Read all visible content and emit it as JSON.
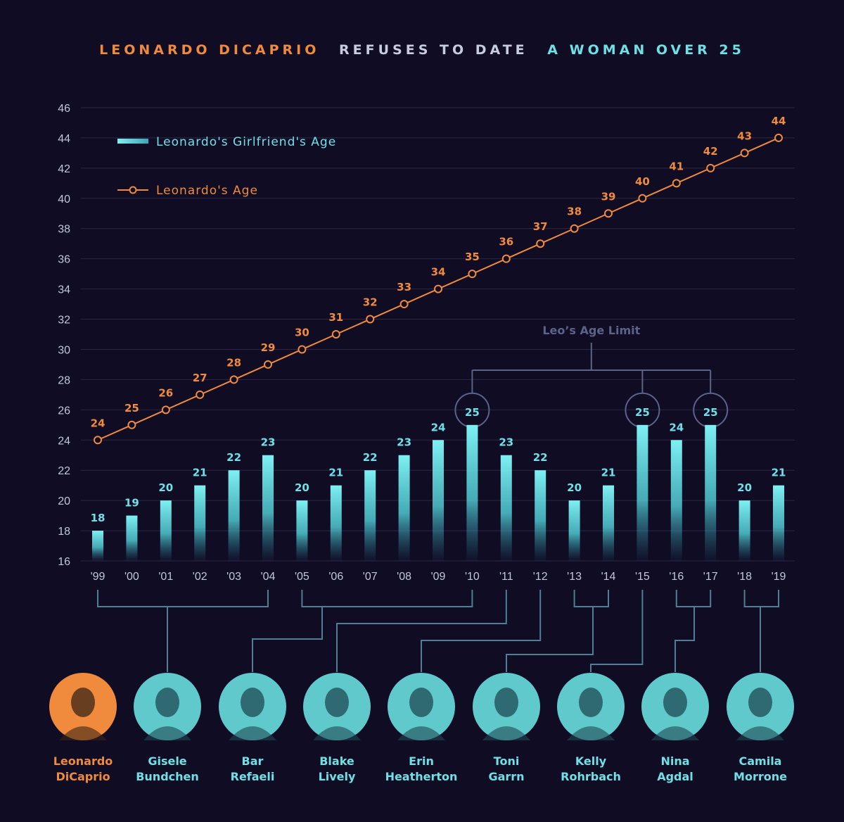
{
  "title": {
    "part1": "LEONARDO DICAPRIO",
    "part2": "REFUSES TO DATE",
    "part3": "A WOMAN OVER 25",
    "color1": "#f08a3c",
    "color2": "#c9cce0",
    "color3": "#6fe0e6"
  },
  "annotation": {
    "label": "Leo’s Age Limit",
    "highlighted_years": [
      "'10",
      "'15",
      "'17"
    ]
  },
  "people": [
    {
      "first": "Leonardo",
      "last": "DiCaprio",
      "color": "#f08a3c"
    },
    {
      "first": "Gisele",
      "last": "Bundchen",
      "color": "#6fe0e6"
    },
    {
      "first": "Bar",
      "last": "Refaeli",
      "color": "#6fe0e6"
    },
    {
      "first": "Blake",
      "last": "Lively",
      "color": "#6fe0e6"
    },
    {
      "first": "Erin",
      "last": "Heatherton",
      "color": "#6fe0e6"
    },
    {
      "first": "Toni",
      "last": "Garrn",
      "color": "#6fe0e6"
    },
    {
      "first": "Kelly",
      "last": "Rohrbach",
      "color": "#6fe0e6"
    },
    {
      "first": "Nina",
      "last": "Agdal",
      "color": "#6fe0e6"
    },
    {
      "first": "Camila",
      "last": "Morrone",
      "color": "#6fe0e6"
    }
  ],
  "chart_data": {
    "type": "bar",
    "categories": [
      "'99",
      "'00",
      "'01",
      "'02",
      "'03",
      "'04",
      "'05",
      "'06",
      "'07",
      "'08",
      "'09",
      "'10",
      "'11",
      "'12",
      "'13",
      "'14",
      "'15",
      "'16",
      "'17",
      "'18",
      "'19"
    ],
    "series": [
      {
        "name": "Leonardo's Girlfriend's Age",
        "type": "bar",
        "color": "#6fe0e6",
        "values": [
          18,
          19,
          20,
          21,
          22,
          23,
          20,
          21,
          22,
          23,
          24,
          25,
          23,
          22,
          20,
          21,
          25,
          24,
          25,
          20,
          21
        ]
      },
      {
        "name": "Leonardo's Age",
        "type": "line",
        "color": "#f08a3c",
        "values": [
          24,
          25,
          26,
          27,
          28,
          29,
          30,
          31,
          32,
          33,
          34,
          35,
          36,
          37,
          38,
          39,
          40,
          41,
          42,
          43,
          44
        ]
      }
    ],
    "yticks": [
      16,
      18,
      20,
      22,
      24,
      26,
      28,
      30,
      32,
      34,
      36,
      38,
      40,
      42,
      44,
      46
    ],
    "ylim": [
      16,
      46
    ],
    "grid": true,
    "legend_position": "top-left"
  },
  "relationships": [
    {
      "person": "Gisele Bundchen",
      "years": [
        "'99",
        "'00",
        "'01",
        "'02",
        "'03",
        "'04"
      ]
    },
    {
      "person": "Bar Refaeli",
      "years": [
        "'05",
        "'06",
        "'07",
        "'08",
        "'09",
        "'10"
      ]
    },
    {
      "person": "Blake Lively",
      "years": [
        "'11"
      ]
    },
    {
      "person": "Erin Heatherton",
      "years": [
        "'12"
      ]
    },
    {
      "person": "Toni Garrn",
      "years": [
        "'13",
        "'14"
      ]
    },
    {
      "person": "Kelly Rohrbach",
      "years": [
        "'15"
      ]
    },
    {
      "person": "Nina Agdal",
      "years": [
        "'16",
        "'17"
      ]
    },
    {
      "person": "Camila Morrone",
      "years": [
        "'18",
        "'19"
      ]
    }
  ]
}
